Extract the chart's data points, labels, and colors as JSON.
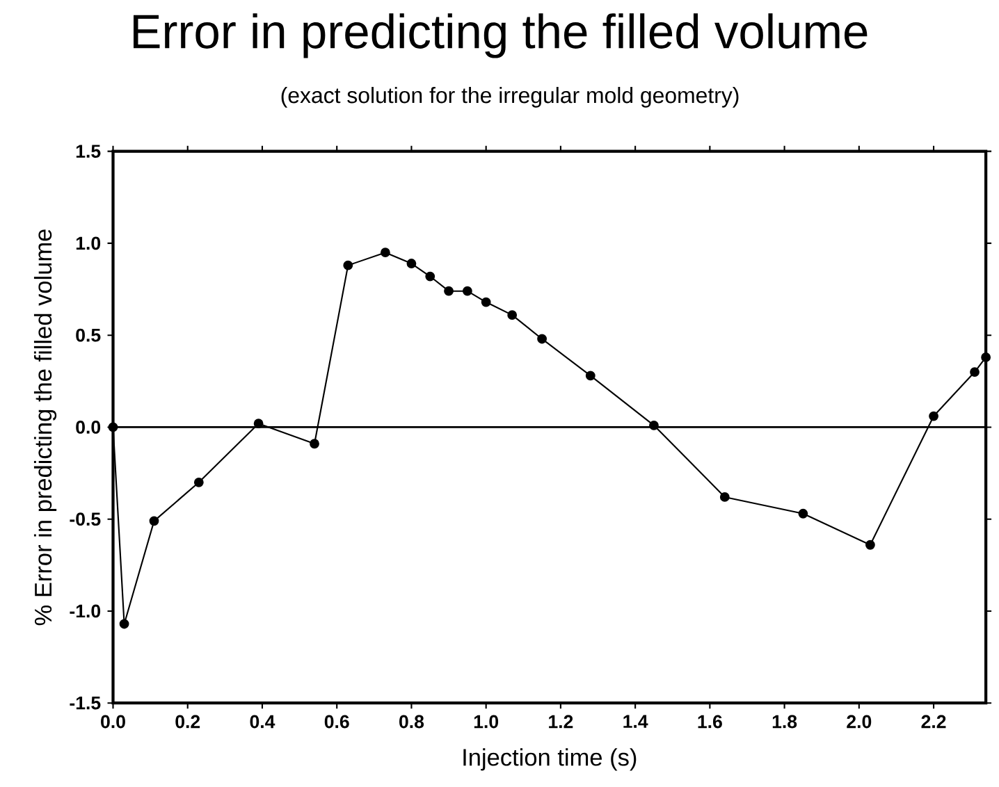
{
  "chart_data": {
    "type": "line",
    "title": "Error in predicting the filled volume",
    "subtitle": "(exact solution for the irregular mold geometry)",
    "xlabel": "Injection time  (s)",
    "ylabel": "% Error in predicting the filled volume",
    "x": [
      0.0,
      0.03,
      0.11,
      0.23,
      0.39,
      0.54,
      0.63,
      0.73,
      0.8,
      0.85,
      0.9,
      0.95,
      1.0,
      1.07,
      1.15,
      1.28,
      1.45,
      1.64,
      1.85,
      2.03,
      2.2,
      2.31,
      2.34
    ],
    "series": [
      {
        "color": "#000000",
        "values": [
          0.0,
          -1.07,
          -0.51,
          -0.3,
          0.02,
          -0.09,
          0.88,
          0.95,
          0.89,
          0.82,
          0.74,
          0.74,
          0.68,
          0.61,
          0.48,
          0.28,
          0.01,
          -0.38,
          -0.47,
          -0.64,
          0.06,
          0.3,
          0.38
        ]
      }
    ],
    "xlim": [
      0,
      2.34
    ],
    "ylim": [
      -1.5,
      1.5
    ],
    "xticks": [
      {
        "value": 0,
        "label": "0.0"
      },
      0.2,
      0.4,
      0.6,
      0.8,
      {
        "value": 1,
        "label": "1.0"
      },
      1.2,
      1.4,
      1.6,
      1.8,
      {
        "value": 2,
        "label": "2.0"
      },
      2.2
    ],
    "yticks": [
      {
        "value": -1.5,
        "label": "-1.5"
      },
      {
        "value": -1,
        "label": "-1.0"
      },
      -0.5,
      {
        "value": 0,
        "label": "0.0"
      },
      0.5,
      {
        "value": 1,
        "label": "1.0"
      },
      1.5
    ],
    "ref_lines": [
      {
        "axis": "y",
        "value": 0,
        "color": "#000000"
      }
    ],
    "marker": "circle",
    "line_style": "solid",
    "grid": false,
    "legend": false
  }
}
